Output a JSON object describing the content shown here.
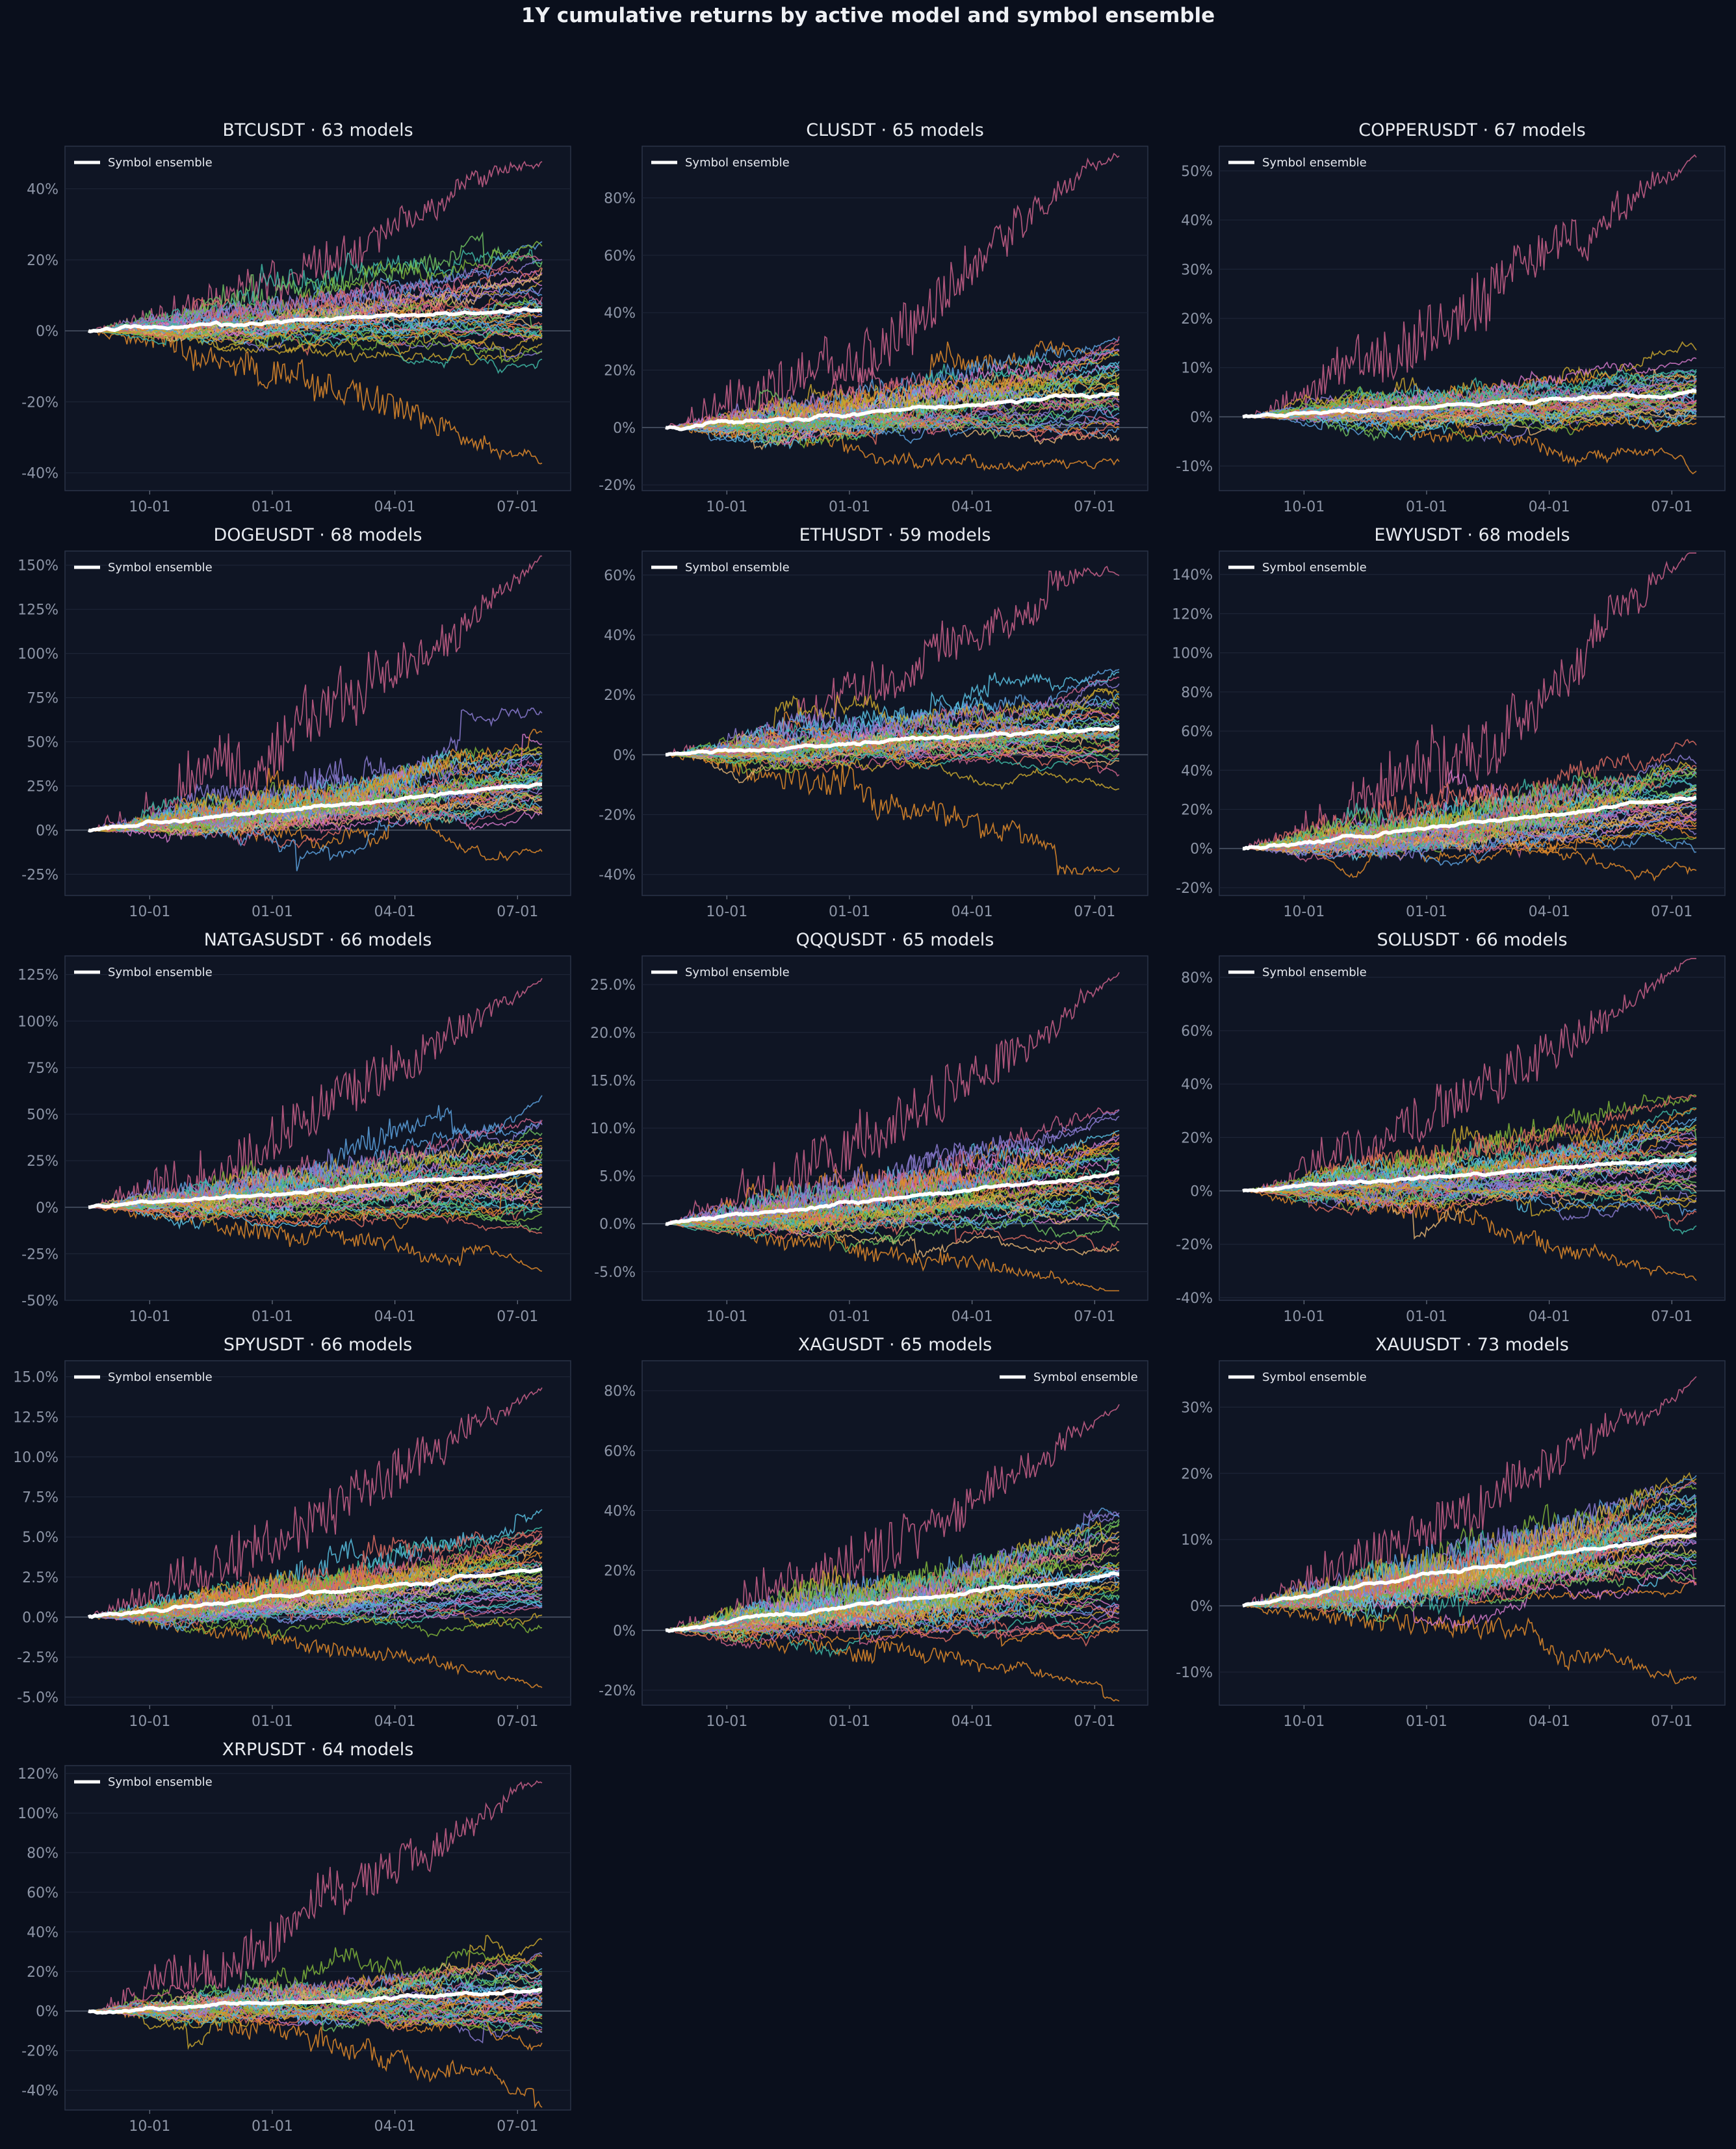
{
  "suptitle": "1Y cumulative returns by active model and symbol ensemble",
  "ensemble_label": "Symbol ensemble",
  "x_ticks": [
    "10-01",
    "01-01",
    "04-01",
    "07-01"
  ],
  "palette": [
    "#c9608a",
    "#e08a2a",
    "#5aa0dd",
    "#7fb43a",
    "#8a7ad0",
    "#3fb8a5",
    "#d96a60",
    "#c8a62e",
    "#d077c8",
    "#58c0e0",
    "#6fbf5f",
    "#e0b070"
  ],
  "chart_data": [
    {
      "type": "line",
      "title": "BTCUSDT · 63 models",
      "model_count": 63,
      "ylim": [
        -45,
        52
      ],
      "yticks": [
        -40,
        -20,
        0,
        20,
        40
      ],
      "tick_decimals": 0,
      "legend": "top-left",
      "ensemble_final": 6,
      "spread": 22,
      "extreme_high": 48,
      "extreme_low": -38
    },
    {
      "type": "line",
      "title": "CLUSDT · 65 models",
      "model_count": 65,
      "ylim": [
        -22,
        98
      ],
      "yticks": [
        -20,
        0,
        20,
        40,
        60,
        80
      ],
      "tick_decimals": 0,
      "legend": "top-left",
      "ensemble_final": 12,
      "spread": 22,
      "extreme_high": 93,
      "extreme_low": -15
    },
    {
      "type": "line",
      "title": "COPPERUSDT · 67 models",
      "model_count": 67,
      "ylim": [
        -15,
        55
      ],
      "yticks": [
        -10,
        0,
        10,
        20,
        30,
        40,
        50
      ],
      "tick_decimals": 0,
      "legend": "top-left",
      "ensemble_final": 5,
      "spread": 10,
      "extreme_high": 52,
      "extreme_low": -10
    },
    {
      "type": "line",
      "title": "DOGEUSDT · 68 models",
      "model_count": 68,
      "ylim": [
        -37,
        158
      ],
      "yticks": [
        -25,
        0,
        25,
        50,
        75,
        100,
        125,
        150
      ],
      "tick_decimals": 0,
      "legend": "top-left",
      "ensemble_final": 26,
      "spread": 35,
      "extreme_high": 155,
      "extreme_low": -26
    },
    {
      "type": "line",
      "title": "ETHUSDT · 59 models",
      "model_count": 59,
      "ylim": [
        -47,
        68
      ],
      "yticks": [
        -40,
        -20,
        0,
        20,
        40,
        60
      ],
      "tick_decimals": 0,
      "legend": "top-left",
      "ensemble_final": 9,
      "spread": 20,
      "extreme_high": 63,
      "extreme_low": -38
    },
    {
      "type": "line",
      "title": "EWYUSDT · 68 models",
      "model_count": 68,
      "ylim": [
        -24,
        152
      ],
      "yticks": [
        -20,
        0,
        20,
        40,
        60,
        80,
        100,
        120,
        140
      ],
      "tick_decimals": 0,
      "legend": "top-left",
      "ensemble_final": 26,
      "spread": 35,
      "extreme_high": 144,
      "extreme_low": -10
    },
    {
      "type": "line",
      "title": "NATGASUSDT · 66 models",
      "model_count": 66,
      "ylim": [
        -50,
        135
      ],
      "yticks": [
        -50,
        -25,
        0,
        25,
        50,
        75,
        100,
        125
      ],
      "tick_decimals": 0,
      "legend": "top-left",
      "ensemble_final": 19,
      "spread": 40,
      "extreme_high": 124,
      "extreme_low": -38
    },
    {
      "type": "line",
      "title": "QQQUSDT · 65 models",
      "model_count": 65,
      "ylim": [
        -8,
        28
      ],
      "yticks": [
        -5,
        0,
        5,
        10,
        15,
        20,
        25
      ],
      "tick_decimals": 1,
      "legend": "top-left",
      "ensemble_final": 5.3,
      "spread": 7,
      "extreme_high": 26,
      "extreme_low": -7
    },
    {
      "type": "line",
      "title": "SOLUSDT · 66 models",
      "model_count": 66,
      "ylim": [
        -41,
        88
      ],
      "yticks": [
        -40,
        -20,
        0,
        20,
        40,
        60,
        80
      ],
      "tick_decimals": 0,
      "legend": "top-left",
      "ensemble_final": 12,
      "spread": 25,
      "extreme_high": 84,
      "extreme_low": -30
    },
    {
      "type": "line",
      "title": "SPYUSDT · 66 models",
      "model_count": 66,
      "ylim": [
        -5.5,
        16
      ],
      "yticks": [
        -5,
        -2.5,
        0,
        2.5,
        5,
        7.5,
        10,
        12.5,
        15
      ],
      "tick_decimals": 1,
      "legend": "top-left",
      "ensemble_final": 3,
      "spread": 4.5,
      "extreme_high": 15,
      "extreme_low": -4
    },
    {
      "type": "line",
      "title": "XAGUSDT · 65 models",
      "model_count": 65,
      "ylim": [
        -25,
        90
      ],
      "yticks": [
        -20,
        0,
        20,
        40,
        60,
        80
      ],
      "tick_decimals": 0,
      "legend": "top-right",
      "ensemble_final": 19,
      "spread": 25,
      "extreme_high": 80,
      "extreme_low": -21
    },
    {
      "type": "line",
      "title": "XAUUSDT · 73 models",
      "model_count": 73,
      "ylim": [
        -15,
        37
      ],
      "yticks": [
        -10,
        0,
        10,
        20,
        30
      ],
      "tick_decimals": 0,
      "legend": "top-left",
      "ensemble_final": 11,
      "spread": 10,
      "extreme_high": 35,
      "extreme_low": -12
    },
    {
      "type": "line",
      "title": "XRPUSDT · 64 models",
      "model_count": 64,
      "ylim": [
        -50,
        124
      ],
      "yticks": [
        -40,
        -20,
        0,
        20,
        40,
        60,
        80,
        100,
        120
      ],
      "tick_decimals": 0,
      "legend": "top-left",
      "ensemble_final": 10,
      "spread": 30,
      "extreme_high": 115,
      "extreme_low": -42
    }
  ]
}
